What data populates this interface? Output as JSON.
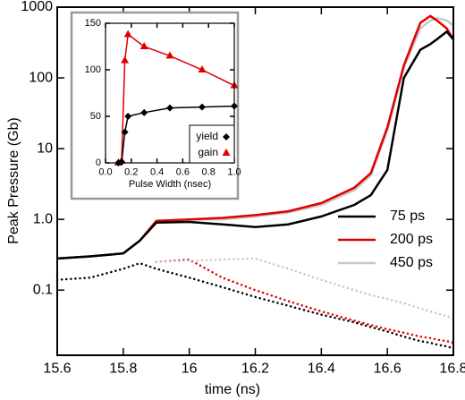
{
  "chart_data": [
    {
      "type": "line",
      "xlabel": "time (ns)",
      "ylabel": "Peak Pressure (Gb)",
      "log_y": true,
      "xlim": [
        15.6,
        16.8
      ],
      "xticks": [
        15.6,
        15.8,
        16.0,
        16.2,
        16.4,
        16.6,
        16.8
      ],
      "ylim": [
        0.012,
        1000
      ],
      "yticks": [
        {
          "value": 1000,
          "label": "1000"
        },
        100,
        10,
        {
          "value": 1,
          "label": "1.0"
        },
        0.1
      ],
      "x": [
        15.6,
        15.7,
        15.8,
        15.85,
        15.9,
        16.0,
        16.1,
        16.2,
        16.3,
        16.4,
        16.5,
        16.55,
        16.6,
        16.65,
        16.7,
        16.73,
        16.75,
        16.78,
        16.8
      ],
      "series": [
        {
          "name": "75 ps",
          "color": "#000000",
          "values": [
            0.28,
            0.3,
            0.33,
            0.5,
            0.9,
            0.92,
            0.85,
            0.78,
            0.85,
            1.1,
            1.6,
            2.2,
            5,
            100,
            250,
            300,
            350,
            450,
            350
          ]
        },
        {
          "name": "200 ps",
          "color": "#e00000",
          "values": [
            0.28,
            0.3,
            0.33,
            0.5,
            0.95,
            1.0,
            1.05,
            1.15,
            1.3,
            1.7,
            2.8,
            4.5,
            20,
            150,
            600,
            750,
            650,
            500,
            350
          ]
        },
        {
          "name": "450 ps",
          "color": "#c8c8c8",
          "values": [
            0.28,
            0.3,
            0.33,
            0.5,
            0.95,
            1.0,
            1.0,
            1.1,
            1.25,
            1.6,
            2.6,
            4.2,
            18,
            140,
            500,
            650,
            700,
            650,
            550
          ]
        }
      ],
      "dotted_series": [
        {
          "color": "#000000",
          "values": [
            0.14,
            0.15,
            0.2,
            0.24,
            0.2,
            0.15,
            0.11,
            0.08,
            0.06,
            0.045,
            0.035,
            0.03,
            0.026,
            0.022,
            0.019,
            0.018,
            0.017,
            0.016,
            0.015
          ]
        },
        {
          "color": "#e00000",
          "values": [
            null,
            null,
            null,
            null,
            0.25,
            0.27,
            0.15,
            0.1,
            0.07,
            0.05,
            0.037,
            0.032,
            0.028,
            0.025,
            0.022,
            0.021,
            0.02,
            0.019,
            0.018
          ]
        },
        {
          "color": "#c8c8c8",
          "values": [
            null,
            null,
            null,
            null,
            0.25,
            0.26,
            0.27,
            0.28,
            0.2,
            0.14,
            0.1,
            0.085,
            0.075,
            0.065,
            0.055,
            0.05,
            0.047,
            0.043,
            0.04
          ]
        }
      ]
    },
    {
      "type": "line",
      "xlabel": "Pulse Width (nsec)",
      "log_y": false,
      "xlim": [
        0,
        1
      ],
      "xticks": [
        {
          "value": 0,
          "label": "0.0"
        },
        0.2,
        0.4,
        0.6,
        0.8,
        {
          "value": 1,
          "label": "1.0"
        }
      ],
      "ylim": [
        0,
        150
      ],
      "yticks": [
        0,
        50,
        100,
        150
      ],
      "x": [
        0.1,
        0.125,
        0.15,
        0.175,
        0.3,
        0.5,
        0.75,
        1.0
      ],
      "series": [
        {
          "name": "yield",
          "color": "#000000",
          "marker": "diamond",
          "values": [
            0,
            1,
            33,
            50,
            54,
            59,
            60,
            61
          ]
        },
        {
          "name": "gain",
          "color": "#e00000",
          "marker": "triangle",
          "values": [
            0,
            2,
            110,
            138,
            125,
            115,
            100,
            83
          ]
        }
      ]
    }
  ]
}
